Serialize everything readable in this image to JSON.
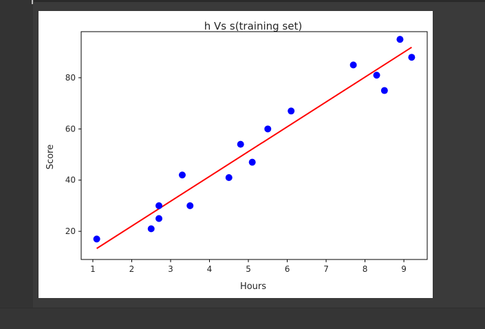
{
  "chart_data": {
    "type": "scatter",
    "title": "h Vs s(training set)",
    "xlabel": "Hours",
    "ylabel": "Score",
    "xlim": [
      0.7,
      9.6
    ],
    "ylim": [
      9,
      98
    ],
    "xticks": [
      1,
      2,
      3,
      4,
      5,
      6,
      7,
      8,
      9
    ],
    "yticks": [
      20,
      40,
      60,
      80
    ],
    "grid": false,
    "series": [
      {
        "kind": "scatter",
        "color": "#0000ff",
        "x": [
          1.1,
          2.5,
          2.7,
          2.7,
          3.3,
          3.5,
          4.5,
          4.8,
          5.1,
          5.5,
          6.1,
          7.7,
          8.3,
          8.5,
          8.9,
          9.2
        ],
        "y": [
          17,
          21,
          25,
          30,
          42,
          30,
          41,
          54,
          47,
          60,
          67,
          85,
          81,
          75,
          95,
          88
        ]
      },
      {
        "kind": "line",
        "color": "#ff0000",
        "x": [
          1.1,
          9.2
        ],
        "y": [
          13.3,
          91.9
        ]
      }
    ]
  }
}
